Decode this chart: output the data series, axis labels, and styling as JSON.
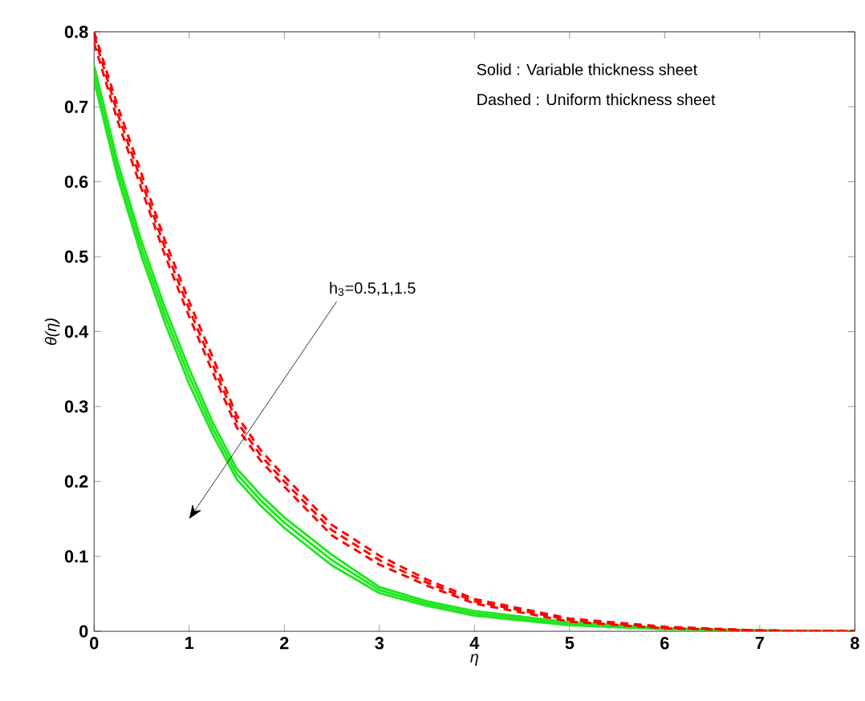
{
  "chart_data": {
    "type": "line",
    "xlabel": "η",
    "ylabel": "θ(η)",
    "xlim": [
      0,
      8
    ],
    "ylim": [
      0,
      0.8
    ],
    "xticks": [
      0,
      1,
      2,
      3,
      4,
      5,
      6,
      7,
      8
    ],
    "yticks": [
      0,
      0.1,
      0.2,
      0.3,
      0.4,
      0.5,
      0.6,
      0.7,
      0.8
    ],
    "grid": false,
    "marker": "none",
    "x": [
      0,
      0.25,
      0.5,
      0.75,
      1,
      1.25,
      1.5,
      1.75,
      2,
      2.5,
      3,
      3.5,
      4,
      5,
      6,
      7,
      8
    ],
    "series": [
      {
        "color": "#22e622",
        "line_style": "solid",
        "values": [
          0.735,
          0.605,
          0.5,
          0.41,
          0.33,
          0.262,
          0.203,
          0.168,
          0.138,
          0.088,
          0.051,
          0.034,
          0.021,
          0.008,
          0.003,
          0.001,
          0
        ]
      },
      {
        "color": "#22e622",
        "line_style": "solid",
        "values": [
          0.745,
          0.615,
          0.51,
          0.42,
          0.34,
          0.27,
          0.21,
          0.175,
          0.145,
          0.095,
          0.055,
          0.037,
          0.024,
          0.01,
          0.003,
          0.001,
          0
        ]
      },
      {
        "color": "#22e622",
        "line_style": "solid",
        "values": [
          0.755,
          0.625,
          0.52,
          0.43,
          0.35,
          0.278,
          0.217,
          0.182,
          0.152,
          0.102,
          0.059,
          0.04,
          0.027,
          0.012,
          0.004,
          0.001,
          0
        ]
      },
      {
        "color": "#ff0000",
        "line_style": "dashed",
        "values": [
          0.785,
          0.68,
          0.59,
          0.5,
          0.42,
          0.345,
          0.272,
          0.228,
          0.193,
          0.128,
          0.089,
          0.061,
          0.037,
          0.013,
          0.004,
          0.001,
          0
        ]
      },
      {
        "color": "#ff0000",
        "line_style": "dashed",
        "values": [
          0.795,
          0.69,
          0.6,
          0.51,
          0.43,
          0.355,
          0.28,
          0.235,
          0.2,
          0.135,
          0.095,
          0.065,
          0.04,
          0.015,
          0.005,
          0.001,
          0
        ]
      },
      {
        "color": "#ff0000",
        "line_style": "dashed",
        "values": [
          0.8,
          0.7,
          0.61,
          0.52,
          0.44,
          0.365,
          0.288,
          0.242,
          0.207,
          0.142,
          0.101,
          0.069,
          0.043,
          0.017,
          0.006,
          0.001,
          0
        ]
      }
    ],
    "annotations": [
      "Solid : Variable thickness sheet",
      "Dashed : Uniform thickness sheet",
      "h$_{3}$=0.5,1,1.5"
    ]
  }
}
